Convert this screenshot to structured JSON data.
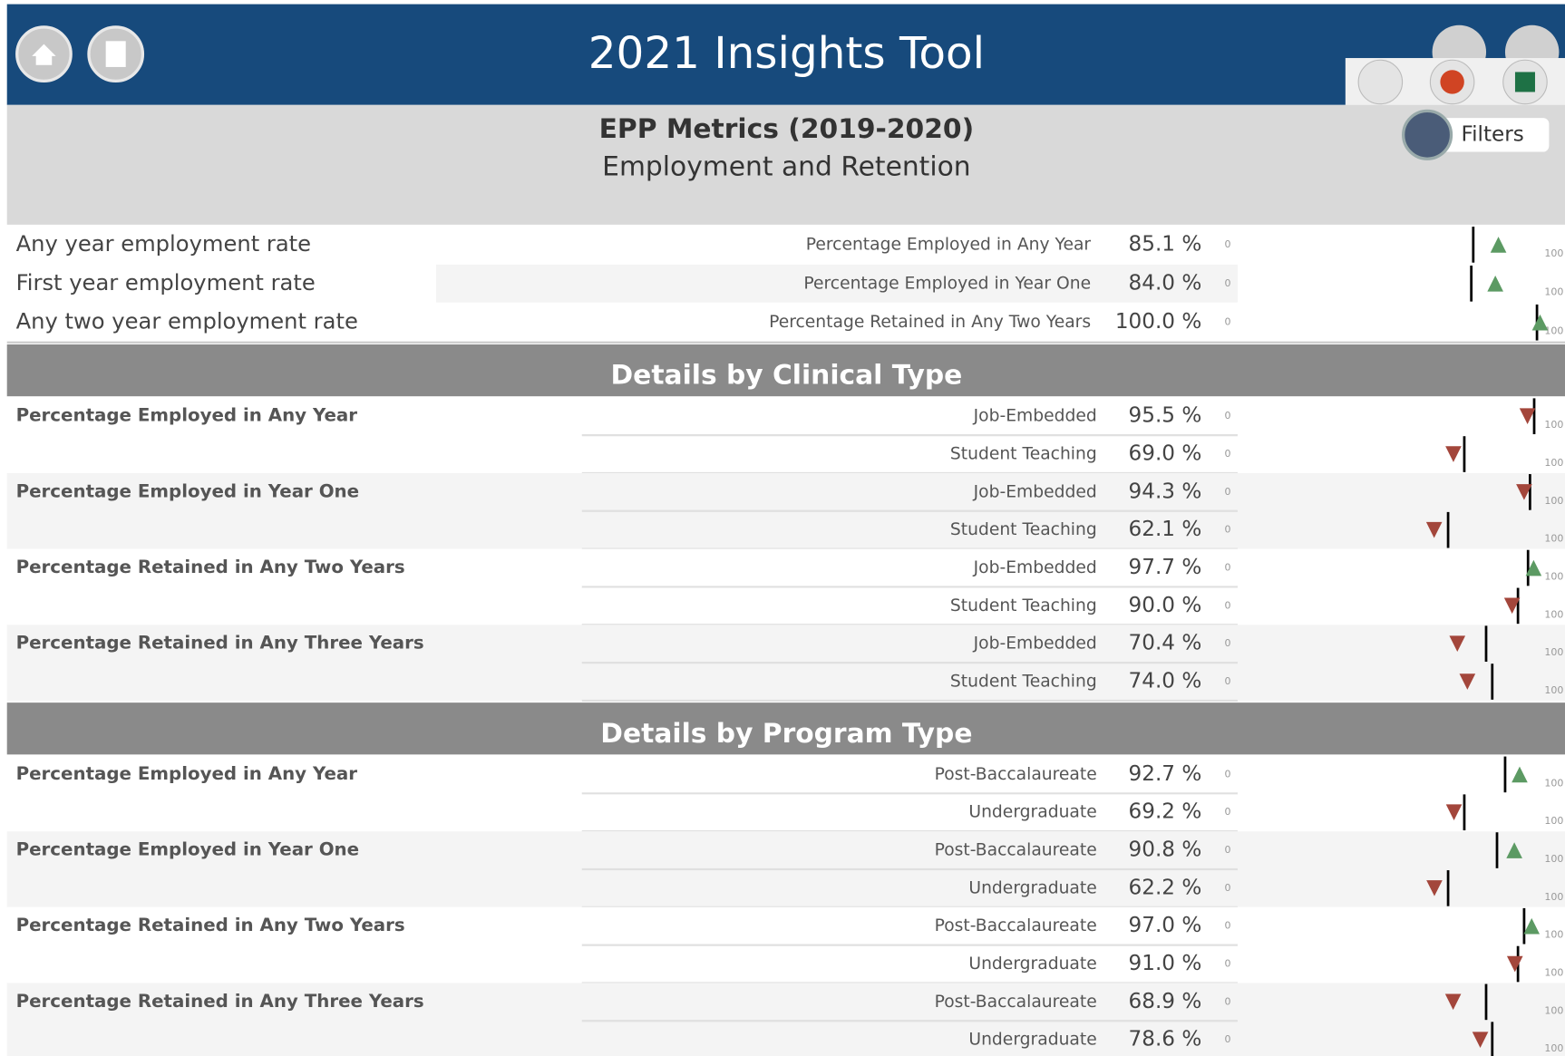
{
  "header": {
    "title": "2021 Insights Tool"
  },
  "filters": "Filters",
  "page": {
    "title": "EPP Metrics (2019-2020)",
    "subtitle": "Employment and Retention"
  },
  "axis": {
    "min": 0,
    "max": 100
  },
  "summary": [
    {
      "label": "Any year employment rate",
      "metric": "Percentage Employed in Any Year",
      "value": 85.1,
      "value_label": "85.1 %",
      "benchmark": 76.1
    },
    {
      "label": "First year employment rate",
      "metric": "Percentage Employed in Year One",
      "value": 84.0,
      "value_label": "84.0 %",
      "benchmark": 75.4
    },
    {
      "label": "Any two year employment rate",
      "metric": "Percentage Retained in Any Two Years",
      "value": 100.0,
      "value_label": "100.0 %",
      "benchmark": 98.9
    }
  ],
  "sections": [
    {
      "title": "Details by Clinical Type",
      "groups": [
        {
          "metric": "Percentage Employed in Any Year",
          "rows": [
            {
              "category": "Job-Embedded",
              "value": 95.5,
              "value_label": "95.5 %",
              "benchmark": 97.9
            },
            {
              "category": "Student Teaching",
              "value": 69.0,
              "value_label": "69.0 %",
              "benchmark": 72.9
            }
          ]
        },
        {
          "metric": "Percentage Employed in Year One",
          "rows": [
            {
              "category": "Job-Embedded",
              "value": 94.3,
              "value_label": "94.3 %",
              "benchmark": 96.4
            },
            {
              "category": "Student Teaching",
              "value": 62.1,
              "value_label": "62.1 %",
              "benchmark": 67.1
            }
          ]
        },
        {
          "metric": "Percentage Retained in Any Two Years",
          "rows": [
            {
              "category": "Job-Embedded",
              "value": 97.7,
              "value_label": "97.7 %",
              "benchmark": 95.7
            },
            {
              "category": "Student Teaching",
              "value": 90.0,
              "value_label": "90.0 %",
              "benchmark": 92.1
            }
          ]
        },
        {
          "metric": "Percentage Retained in Any Three Years",
          "rows": [
            {
              "category": "Job-Embedded",
              "value": 70.4,
              "value_label": "70.4 %",
              "benchmark": 80.7
            },
            {
              "category": "Student Teaching",
              "value": 74.0,
              "value_label": "74.0 %",
              "benchmark": 82.9
            }
          ]
        }
      ]
    },
    {
      "title": "Details by Program Type",
      "groups": [
        {
          "metric": "Percentage Employed in Any Year",
          "rows": [
            {
              "category": "Post-Baccalaureate",
              "value": 92.7,
              "value_label": "92.7 %",
              "benchmark": 87.5
            },
            {
              "category": "Undergraduate",
              "value": 69.2,
              "value_label": "69.2 %",
              "benchmark": 72.9
            }
          ]
        },
        {
          "metric": "Percentage Employed in Year One",
          "rows": [
            {
              "category": "Post-Baccalaureate",
              "value": 90.8,
              "value_label": "90.8 %",
              "benchmark": 84.6
            },
            {
              "category": "Undergraduate",
              "value": 62.2,
              "value_label": "62.2 %",
              "benchmark": 67.1
            }
          ]
        },
        {
          "metric": "Percentage Retained in Any Two Years",
          "rows": [
            {
              "category": "Post-Baccalaureate",
              "value": 97.0,
              "value_label": "97.0 %",
              "benchmark": 94.3
            },
            {
              "category": "Undergraduate",
              "value": 91.0,
              "value_label": "91.0 %",
              "benchmark": 92.1
            }
          ]
        },
        {
          "metric": "Percentage Retained in Any Three Years",
          "rows": [
            {
              "category": "Post-Baccalaureate",
              "value": 68.9,
              "value_label": "68.9 %",
              "benchmark": 80.7
            },
            {
              "category": "Undergraduate",
              "value": 78.6,
              "value_label": "78.6 %",
              "benchmark": 82.9
            }
          ]
        }
      ]
    }
  ]
}
